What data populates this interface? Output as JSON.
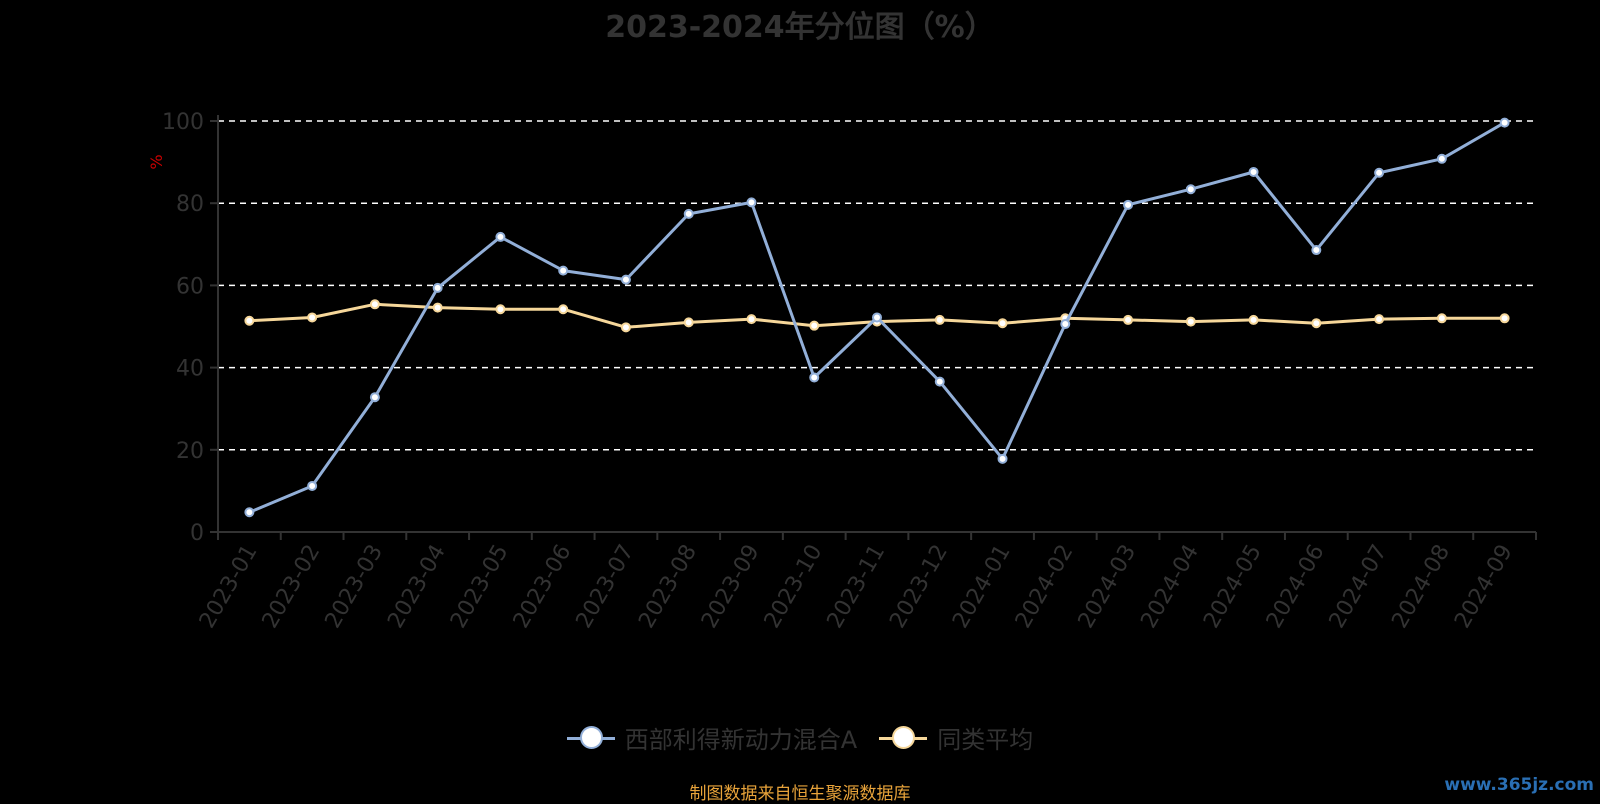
{
  "chart_data": {
    "type": "line",
    "title": "2023-2024年分位图（%）",
    "ylabel": "%",
    "xlabel": "",
    "categories": [
      "2023-01",
      "2023-02",
      "2023-03",
      "2023-04",
      "2023-05",
      "2023-06",
      "2023-07",
      "2023-08",
      "2023-09",
      "2023-10",
      "2023-11",
      "2023-12",
      "2024-01",
      "2024-02",
      "2024-03",
      "2024-04",
      "2024-05",
      "2024-06",
      "2024-07",
      "2024-08",
      "2024-09"
    ],
    "ylim": [
      0,
      100
    ],
    "yticks": [
      0,
      20,
      40,
      60,
      80,
      100
    ],
    "grid": true,
    "legend_position": "bottom",
    "series": [
      {
        "name": "西部利得新动力混合A",
        "color": "#92afd8",
        "values": [
          4.8,
          11.2,
          32.8,
          59.4,
          71.8,
          63.6,
          61.4,
          77.4,
          80.2,
          37.6,
          52.2,
          36.6,
          17.8,
          50.6,
          79.6,
          83.4,
          87.6,
          68.6,
          87.4,
          90.8,
          99.6
        ]
      },
      {
        "name": "同类平均",
        "color": "#f6d79a",
        "values": [
          51.4,
          52.2,
          55.4,
          54.6,
          54.2,
          54.2,
          49.8,
          51.0,
          51.8,
          50.2,
          51.2,
          51.6,
          50.8,
          52.0,
          51.6,
          51.2,
          51.6,
          50.8,
          51.8,
          52.0,
          52.0
        ]
      }
    ]
  },
  "footer": {
    "source": "制图数据来自恒生聚源数据库",
    "watermark": "www.365jz.com"
  }
}
